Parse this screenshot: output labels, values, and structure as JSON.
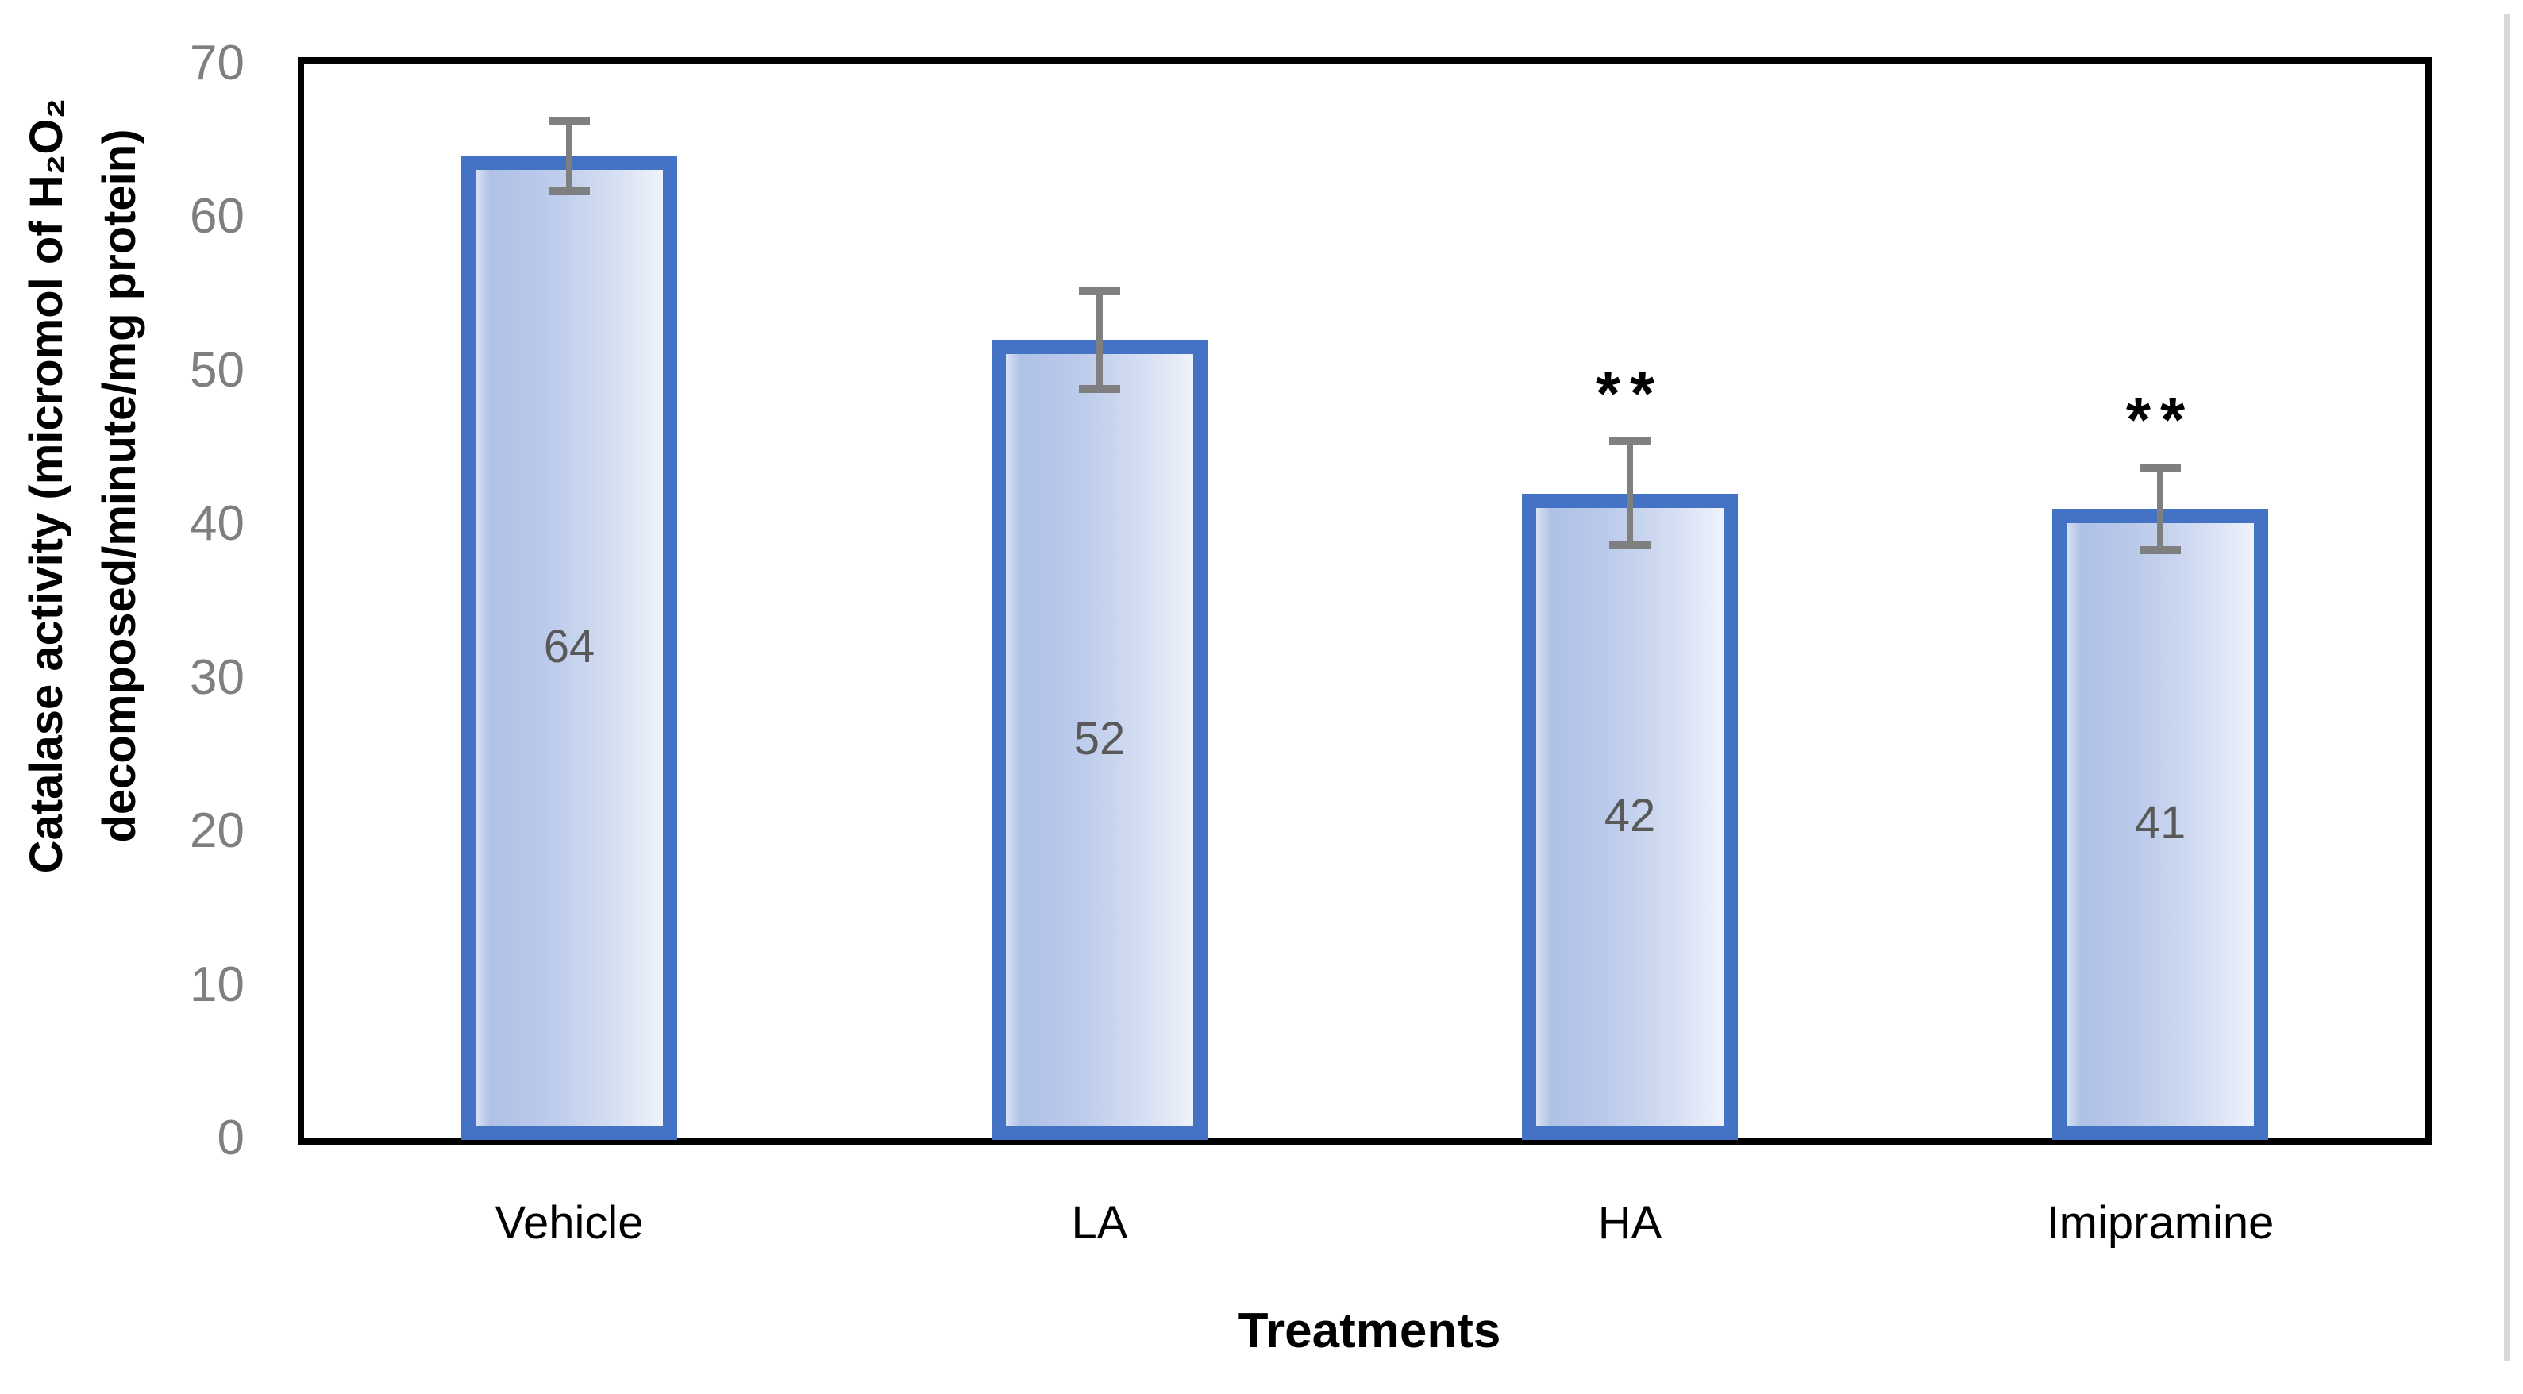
{
  "chart_data": {
    "type": "bar",
    "title": "",
    "categories": [
      "Vehicle",
      "LA",
      "HA",
      "Imipramine"
    ],
    "values": [
      64,
      52,
      42,
      41
    ],
    "errors": [
      2.3,
      3.2,
      3.4,
      2.7
    ],
    "bar_labels": [
      "64",
      "52",
      "42",
      "41"
    ],
    "annotations": [
      "",
      "",
      "**",
      "**"
    ],
    "xlabel": "Treatments",
    "ylabel_lines": [
      "Catalase activity (micromol of H₂O₂",
      "decomposed/minute/mg protein)"
    ],
    "yticks": [
      0,
      10,
      20,
      30,
      40,
      50,
      60,
      70
    ],
    "ylim": [
      0,
      70
    ],
    "grid": "off",
    "legend": "none",
    "colors": {
      "bar_border": "#4472c4",
      "bar_fill_dark": "#afc1e6",
      "bar_fill_light": "#eef2fa",
      "error_bar": "#7f7f7f",
      "tick_label": "#7f7f7f",
      "bar_value_label": "#595959",
      "axis_frame": "#000000",
      "axis_title": "#000000"
    }
  }
}
